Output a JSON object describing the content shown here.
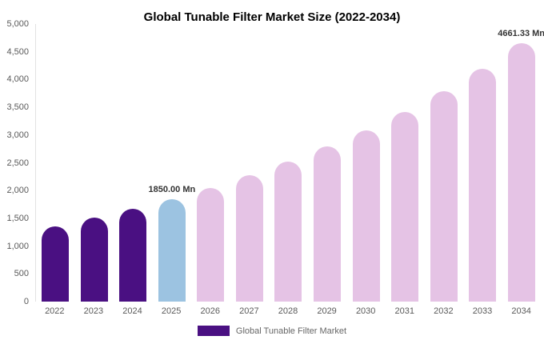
{
  "title": "Global Tunable Filter Market Size (2022-2034)",
  "chart_data": {
    "type": "bar",
    "title": "Global Tunable Filter Market Size (2022-2034)",
    "categories": [
      "2022",
      "2023",
      "2024",
      "2025",
      "2026",
      "2027",
      "2028",
      "2029",
      "2030",
      "2031",
      "2032",
      "2033",
      "2034"
    ],
    "values": [
      1360,
      1510,
      1670,
      1850,
      2050,
      2270,
      2520,
      2790,
      3090,
      3420,
      3790,
      4200,
      4661.33
    ],
    "value_labels": {
      "2025": "1850.00 Mn",
      "2034": "4661.33 Mn"
    },
    "bar_colors": [
      "#4a1082",
      "#4a1082",
      "#4a1082",
      "#9cc3e1",
      "#e5c3e5",
      "#e5c3e5",
      "#e5c3e5",
      "#e5c3e5",
      "#e5c3e5",
      "#e5c3e5",
      "#e5c3e5",
      "#e5c3e5",
      "#e5c3e5"
    ],
    "colors": {
      "historical": "#4a1082",
      "current_year": "#9cc3e1",
      "forecast": "#e5c3e5"
    },
    "xlabel": "",
    "ylabel": "",
    "ylim": [
      0,
      5000
    ],
    "ytick_step": 500,
    "ytick_labels": [
      "0",
      "500",
      "1,000",
      "1,500",
      "2,000",
      "2,500",
      "3,000",
      "3,500",
      "4,000",
      "4,500",
      "5,000"
    ],
    "grid": false,
    "legend_position": "bottom",
    "legend": [
      {
        "label": "Global Tunable Filter Market",
        "color": "#4a1082"
      }
    ]
  }
}
